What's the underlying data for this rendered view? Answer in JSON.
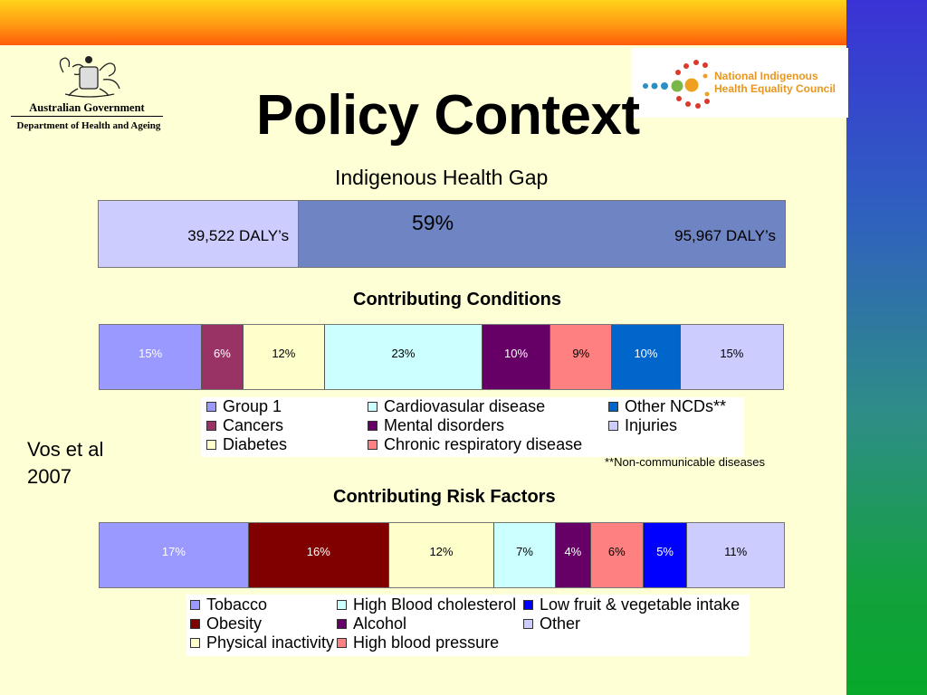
{
  "slide": {
    "title": "Policy Context",
    "citation_line1": "Vos et al",
    "citation_line2": "2007",
    "footnote": "**Non-communicable diseases"
  },
  "logos": {
    "left_org": "Australian Government",
    "left_dept": "Department of Health and Ageing",
    "right_line1": "National Indigenous",
    "right_line2": "Health Equality Council"
  },
  "chart_data": [
    {
      "type": "bar",
      "orientation": "horizontal-stacked",
      "title": "Indigenous Health Gap",
      "annotation": "59%",
      "segments": [
        {
          "label": "39,522 DALY’s",
          "value": 39522,
          "color": "#ccccff"
        },
        {
          "label": "95,967 DALY’s",
          "value": 95967,
          "color": "#6f84c2"
        }
      ]
    },
    {
      "type": "bar",
      "orientation": "horizontal-stacked",
      "title": "Contributing Conditions",
      "series": [
        {
          "name": "Group 1",
          "value": 15,
          "label": "15%",
          "color": "#9999ff",
          "text_color": "#ffffff"
        },
        {
          "name": "Cancers",
          "value": 6,
          "label": "6%",
          "color": "#993366",
          "text_color": "#ffffff"
        },
        {
          "name": "Diabetes",
          "value": 12,
          "label": "12%",
          "color": "#ffffcc",
          "text_color": "#000000"
        },
        {
          "name": "Cardiovasular disease",
          "value": 23,
          "label": "23%",
          "color": "#ccffff",
          "text_color": "#000000"
        },
        {
          "name": "Mental disorders",
          "value": 10,
          "label": "10%",
          "color": "#660066",
          "text_color": "#ffffff"
        },
        {
          "name": "Chronic respiratory disease",
          "value": 9,
          "label": "9%",
          "color": "#ff8080",
          "text_color": "#000000"
        },
        {
          "name": "Other NCDs**",
          "value": 10,
          "label": "10%",
          "color": "#0066cc",
          "text_color": "#ffffff"
        },
        {
          "name": "Injuries",
          "value": 15,
          "label": "15%",
          "color": "#ccccff",
          "text_color": "#000000"
        }
      ]
    },
    {
      "type": "bar",
      "orientation": "horizontal-stacked",
      "title": "Contributing Risk Factors",
      "series": [
        {
          "name": "Tobacco",
          "value": 17,
          "label": "17%",
          "color": "#9999ff",
          "text_color": "#ffffff"
        },
        {
          "name": "Obesity",
          "value": 16,
          "label": "16%",
          "color": "#800000",
          "text_color": "#ffffff"
        },
        {
          "name": "Physical inactivity",
          "value": 12,
          "label": "12%",
          "color": "#ffffcc",
          "text_color": "#000000"
        },
        {
          "name": "High Blood cholesterol",
          "value": 7,
          "label": "7%",
          "color": "#ccffff",
          "text_color": "#000000"
        },
        {
          "name": "Alcohol",
          "value": 4,
          "label": "4%",
          "color": "#660066",
          "text_color": "#ffffff"
        },
        {
          "name": "High blood pressure",
          "value": 6,
          "label": "6%",
          "color": "#ff8080",
          "text_color": "#000000"
        },
        {
          "name": "Low fruit & vegetable intake",
          "value": 5,
          "label": "5%",
          "color": "#0000ff",
          "text_color": "#ffffff"
        },
        {
          "name": "Other",
          "value": 11,
          "label": "11%",
          "color": "#ccccff",
          "text_color": "#000000"
        }
      ]
    }
  ]
}
